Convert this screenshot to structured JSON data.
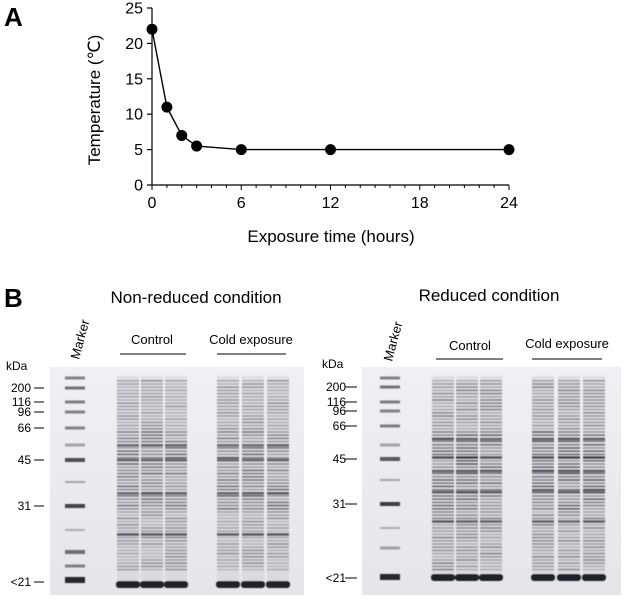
{
  "figure": {
    "panel_a_letter": "A",
    "panel_b_letter": "B"
  },
  "chart_data": {
    "type": "line",
    "title": "",
    "xlabel": "Exposure time (hours)",
    "ylabel": "Temperature (℃)",
    "x": [
      0,
      1,
      2,
      3,
      6,
      12,
      24
    ],
    "series": [
      {
        "values": [
          22,
          11,
          7,
          5.5,
          5,
          5,
          5
        ]
      }
    ],
    "xlim": [
      0,
      24
    ],
    "ylim": [
      0,
      25
    ],
    "xticks": [
      0,
      6,
      12,
      18,
      24
    ],
    "yticks": [
      0,
      5,
      10,
      15,
      20,
      25
    ],
    "grid": false,
    "line_color": "#000000",
    "marker_color": "#000000"
  },
  "gels": [
    {
      "title": "Non-reduced condition",
      "unit": "kDa",
      "marker_label": "Marker",
      "groups": [
        "Control",
        "Cold exposure"
      ],
      "ladder": [
        "200",
        "116",
        "96",
        "66",
        "45",
        "31",
        "<21"
      ]
    },
    {
      "title": "Reduced condition",
      "unit": "kDa",
      "marker_label": "Marker",
      "groups": [
        "Control",
        "Cold exposure"
      ],
      "ladder": [
        "200",
        "116",
        "96",
        "66",
        "45",
        "31",
        "<21"
      ]
    }
  ]
}
